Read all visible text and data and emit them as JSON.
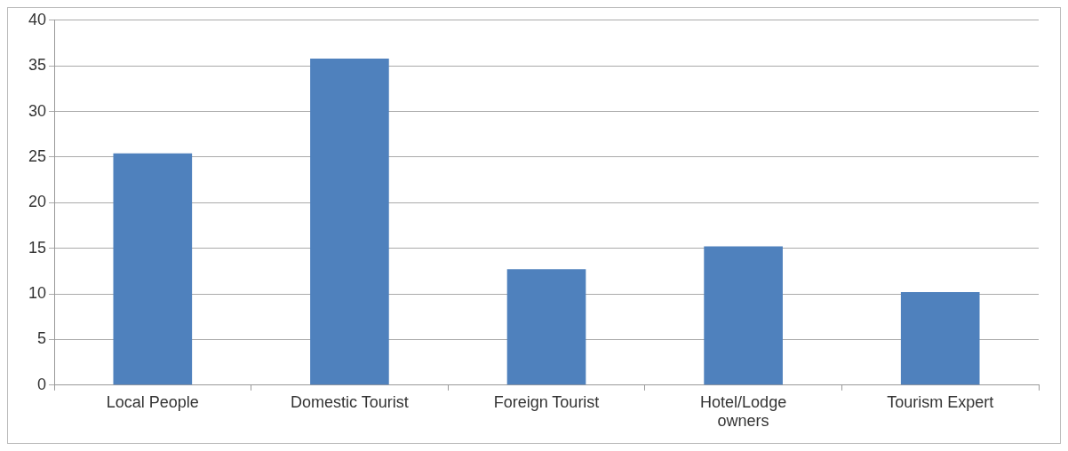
{
  "chart_data": {
    "type": "bar",
    "categories": [
      "Local People",
      "Domestic Tourist",
      "Foreign Tourist",
      "Hotel/Lodge owners",
      "Tourism Expert"
    ],
    "values": [
      25.4,
      35.8,
      12.7,
      15.2,
      10.2
    ],
    "color": "#4f81bd",
    "ylim": [
      0,
      40
    ],
    "yticks": [
      0,
      5,
      10,
      15,
      20,
      25,
      30,
      35,
      40
    ],
    "grid": "y",
    "legend": false
  }
}
